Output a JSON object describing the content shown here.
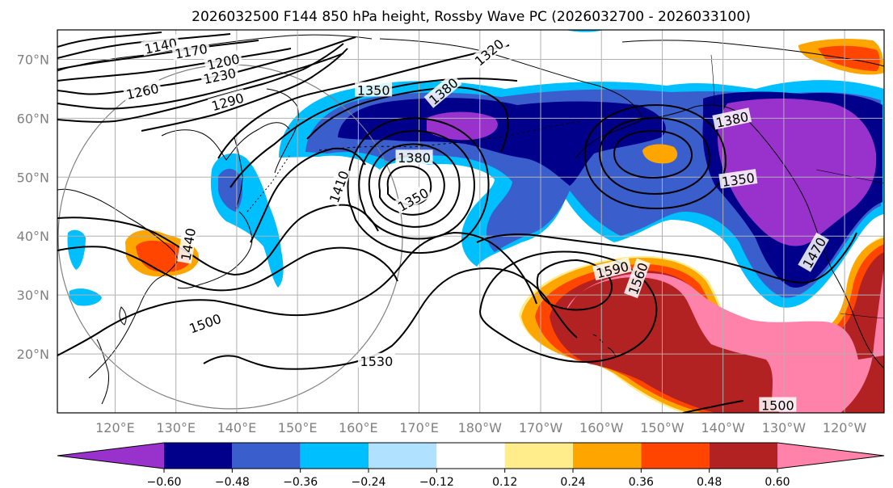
{
  "title": "2026032500 F144 850 hPa height, Rossby Wave PC (2026032700 - 2026033100)",
  "lat_ticks": [
    "70°N",
    "60°N",
    "50°N",
    "40°N",
    "30°N",
    "20°N"
  ],
  "lon_ticks": [
    "120°E",
    "130°E",
    "140°E",
    "150°E",
    "160°E",
    "170°E",
    "180°W",
    "170°W",
    "160°W",
    "150°W",
    "140°W",
    "130°W",
    "120°W"
  ],
  "colorbar": {
    "colors": [
      "#9932cc",
      "#00008b",
      "#3a5fcd",
      "#00bfff",
      "#b0e2ff",
      "#ffffff",
      "#ffec8b",
      "#ffa500",
      "#ff4500",
      "#b22222",
      "#ff82ab"
    ],
    "tick_labels": [
      "−0.60",
      "−0.48",
      "−0.36",
      "−0.24",
      "−0.12",
      "0.12",
      "0.24",
      "0.36",
      "0.48",
      "0.60"
    ]
  },
  "contour_labels": [
    {
      "text": "1140",
      "lon": 127.5,
      "lat": 72.3,
      "rot": -12
    },
    {
      "text": "1170",
      "lon": 132.5,
      "lat": 71.4,
      "rot": -10
    },
    {
      "text": "1200",
      "lon": 137.8,
      "lat": 69.6,
      "rot": -12
    },
    {
      "text": "1230",
      "lon": 137.2,
      "lat": 67.2,
      "rot": -12
    },
    {
      "text": "1260",
      "lon": 124.5,
      "lat": 64.6,
      "rot": -12
    },
    {
      "text": "1290",
      "lon": 138.5,
      "lat": 62.8,
      "rot": -16
    },
    {
      "text": "1320",
      "lon": 181.5,
      "lat": 71.2,
      "rot": -40
    },
    {
      "text": "1350",
      "lon": 162.5,
      "lat": 64.8,
      "rot": 0
    },
    {
      "text": "1380",
      "lon": 174.0,
      "lat": 64.6,
      "rot": -40
    },
    {
      "text": "1380",
      "lon": 169.2,
      "lat": 53.3,
      "rot": 0
    },
    {
      "text": "1350",
      "lon": 169.0,
      "lat": 46.2,
      "rot": -30
    },
    {
      "text": "1380",
      "lon": 221.5,
      "lat": 59.8,
      "rot": -12
    },
    {
      "text": "1350",
      "lon": 222.5,
      "lat": 49.6,
      "rot": -8
    },
    {
      "text": "1410",
      "lon": 156.8,
      "lat": 48.4,
      "rot": -70
    },
    {
      "text": "1440",
      "lon": 132.0,
      "lat": 38.6,
      "rot": -80
    },
    {
      "text": "1470",
      "lon": 235.0,
      "lat": 37.2,
      "rot": -60
    },
    {
      "text": "1500",
      "lon": 134.8,
      "lat": 25.2,
      "rot": -20
    },
    {
      "text": "1500",
      "lon": 229.0,
      "lat": 11.3,
      "rot": 0
    },
    {
      "text": "1530",
      "lon": 163.0,
      "lat": 18.8,
      "rot": 0
    },
    {
      "text": "1560",
      "lon": 206.0,
      "lat": 32.8,
      "rot": -70
    },
    {
      "text": "1590",
      "lon": 201.8,
      "lat": 34.3,
      "rot": -14
    }
  ]
}
